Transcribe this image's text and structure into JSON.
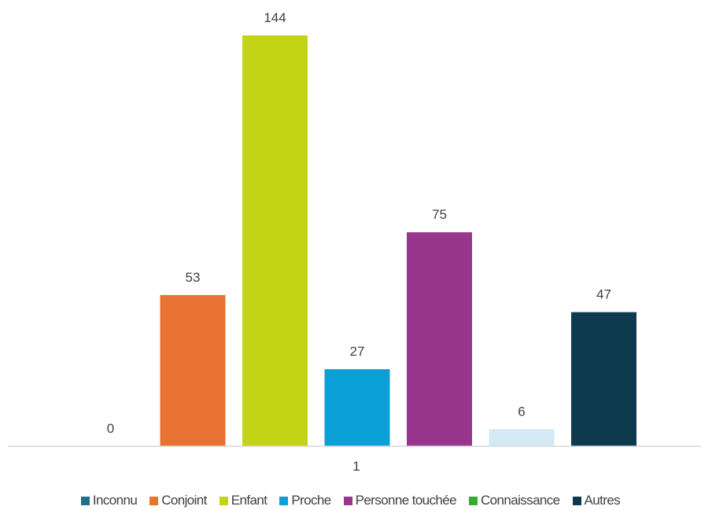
{
  "chart_data": {
    "type": "bar",
    "categories": [
      "1"
    ],
    "series": [
      {
        "name": "Inconnu",
        "values": [
          0
        ],
        "color": "#1f6f8b"
      },
      {
        "name": "Conjoint",
        "values": [
          53
        ],
        "color": "#e87231"
      },
      {
        "name": "Enfant",
        "values": [
          144
        ],
        "color": "#c3d316"
      },
      {
        "name": "Proche",
        "values": [
          27
        ],
        "color": "#0a9fd6"
      },
      {
        "name": "Personne touchée",
        "values": [
          75
        ],
        "color": "#98358c"
      },
      {
        "name": "Connaissance",
        "values": [
          6
        ],
        "color": "#3aa935"
      },
      {
        "name": "Autres",
        "values": [
          47
        ],
        "color": "#0d3a4f"
      }
    ],
    "bar_colors_as_rendered": [
      "#1f6f8b",
      "#e87231",
      "#c3d316",
      "#0a9fd6",
      "#98358c",
      "#d3e9f5",
      "#0d3a4f"
    ],
    "data_labels": true,
    "ylim": [
      0,
      144
    ],
    "grid": false,
    "legend_position": "bottom",
    "title": "",
    "xlabel": "",
    "ylabel": ""
  }
}
